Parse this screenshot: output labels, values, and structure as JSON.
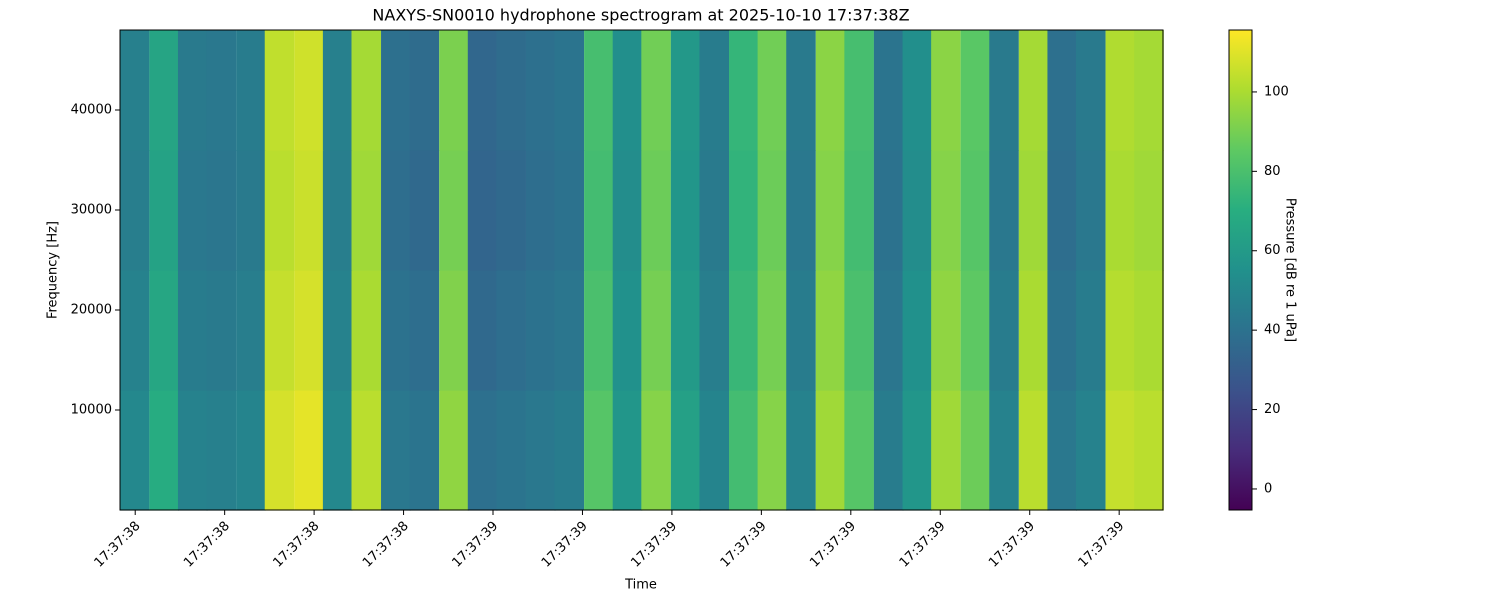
{
  "chart_data": {
    "type": "heatmap",
    "title": "NAXYS-SN0010 hydrophone spectrogram at 2025-10-10 17:37:38Z",
    "x_label": "Time",
    "y_label": "Frequency [Hz]",
    "colorbar_label": "Pressure [dB re 1 uPa]",
    "colormap": "viridis",
    "xlim": [
      38.583,
      39.749
    ],
    "xticks": [
      {
        "value": 38.6,
        "label": "17:37:38"
      },
      {
        "value": 38.7,
        "label": "17:37:38"
      },
      {
        "value": 38.8,
        "label": "17:37:38"
      },
      {
        "value": 38.9,
        "label": "17:37:38"
      },
      {
        "value": 39.0,
        "label": "17:37:39"
      },
      {
        "value": 39.1,
        "label": "17:37:39"
      },
      {
        "value": 39.2,
        "label": "17:37:39"
      },
      {
        "value": 39.3,
        "label": "17:37:39"
      },
      {
        "value": 39.4,
        "label": "17:37:39"
      },
      {
        "value": 39.5,
        "label": "17:37:39"
      },
      {
        "value": 39.6,
        "label": "17:37:39"
      },
      {
        "value": 39.7,
        "label": "17:37:39"
      }
    ],
    "ylim": [
      0,
      48000
    ],
    "yticks": [
      10000,
      20000,
      30000,
      40000
    ],
    "clim": [
      -5.3,
      115.6
    ],
    "cticks": [
      0,
      20,
      40,
      60,
      80,
      100
    ],
    "x": [
      38.599,
      38.632,
      38.664,
      38.696,
      38.729,
      38.761,
      38.794,
      38.826,
      38.858,
      38.891,
      38.923,
      38.956,
      38.988,
      39.02,
      39.053,
      39.085,
      39.118,
      39.15,
      39.182,
      39.215,
      39.247,
      39.28,
      39.312,
      39.344,
      39.377,
      39.409,
      39.442,
      39.474,
      39.506,
      39.539,
      39.571,
      39.604,
      39.636,
      39.668,
      39.701,
      39.733
    ],
    "y": [
      6000,
      18000,
      30000,
      42000
    ],
    "z": [
      [
        51,
        69,
        48,
        47,
        49,
        108,
        111,
        51,
        103,
        43,
        41,
        95,
        39,
        41,
        43,
        45,
        83,
        58,
        93,
        63,
        49,
        78,
        93,
        48,
        98,
        83,
        45,
        58,
        98,
        88,
        48,
        103,
        43,
        48,
        105,
        103
      ],
      [
        48,
        66,
        45,
        44,
        46,
        105,
        108,
        48,
        100,
        40,
        38,
        92,
        36,
        38,
        40,
        42,
        80,
        55,
        90,
        60,
        46,
        75,
        90,
        45,
        95,
        80,
        42,
        55,
        95,
        85,
        45,
        100,
        40,
        45,
        102,
        100
      ],
      [
        46,
        64,
        43,
        42,
        44,
        103,
        106,
        46,
        98,
        38,
        36,
        90,
        34,
        36,
        38,
        40,
        78,
        53,
        88,
        58,
        44,
        73,
        88,
        43,
        93,
        78,
        40,
        53,
        93,
        83,
        43,
        98,
        38,
        43,
        100,
        98
      ],
      [
        47,
        65,
        44,
        43,
        45,
        104,
        107,
        47,
        99,
        39,
        37,
        91,
        35,
        37,
        39,
        41,
        79,
        54,
        89,
        59,
        45,
        74,
        89,
        44,
        94,
        79,
        41,
        54,
        94,
        84,
        44,
        99,
        39,
        44,
        101,
        99
      ]
    ]
  }
}
